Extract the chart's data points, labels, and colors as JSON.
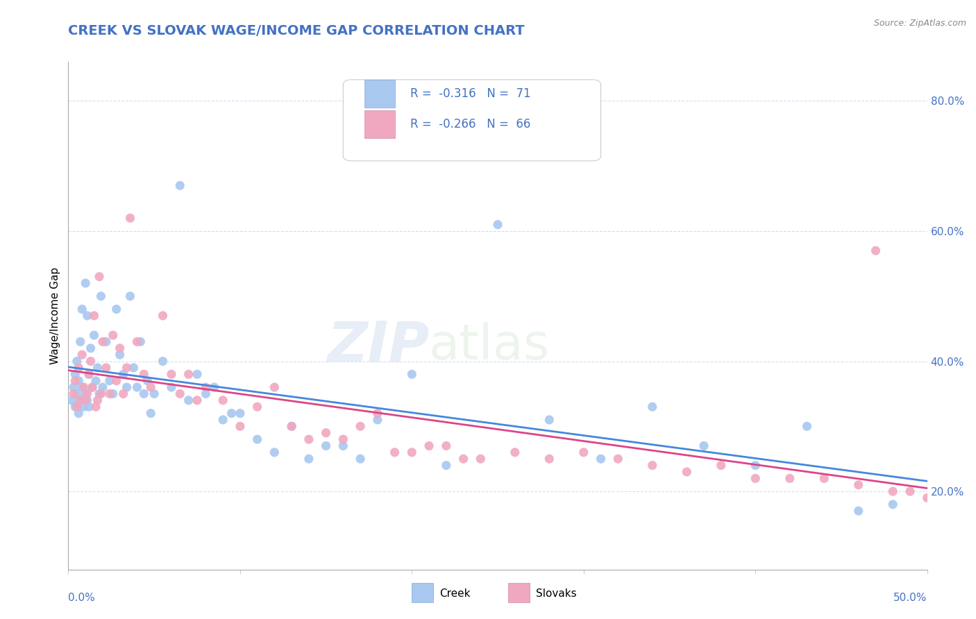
{
  "title": "CREEK VS SLOVAK WAGE/INCOME GAP CORRELATION CHART",
  "source": "Source: ZipAtlas.com",
  "ylabel": "Wage/Income Gap",
  "ytick_vals": [
    0.2,
    0.4,
    0.6,
    0.8
  ],
  "ytick_labels": [
    "20.0%",
    "40.0%",
    "60.0%",
    "80.0%"
  ],
  "xlim": [
    0.0,
    0.5
  ],
  "ylim": [
    0.08,
    0.86
  ],
  "creek_R": -0.316,
  "creek_N": 71,
  "slovak_R": -0.266,
  "slovak_N": 66,
  "creek_color": "#a8c8f0",
  "slovak_color": "#f0a8c0",
  "creek_line_color": "#4488dd",
  "slovak_line_color": "#dd4488",
  "axis_color": "#4472c4",
  "title_color": "#4472c4",
  "watermark_zip": "ZIP",
  "watermark_atlas": "atlas",
  "creek_x": [
    0.002,
    0.003,
    0.004,
    0.004,
    0.005,
    0.005,
    0.006,
    0.006,
    0.007,
    0.007,
    0.008,
    0.008,
    0.009,
    0.01,
    0.01,
    0.011,
    0.011,
    0.012,
    0.012,
    0.013,
    0.014,
    0.015,
    0.016,
    0.017,
    0.018,
    0.019,
    0.02,
    0.022,
    0.024,
    0.026,
    0.028,
    0.03,
    0.032,
    0.034,
    0.036,
    0.038,
    0.04,
    0.042,
    0.044,
    0.046,
    0.048,
    0.05,
    0.055,
    0.06,
    0.065,
    0.07,
    0.075,
    0.08,
    0.085,
    0.09,
    0.095,
    0.1,
    0.11,
    0.12,
    0.13,
    0.14,
    0.15,
    0.16,
    0.17,
    0.18,
    0.2,
    0.22,
    0.25,
    0.28,
    0.31,
    0.34,
    0.37,
    0.4,
    0.43,
    0.46,
    0.48
  ],
  "creek_y": [
    0.34,
    0.36,
    0.33,
    0.38,
    0.35,
    0.4,
    0.32,
    0.37,
    0.34,
    0.43,
    0.36,
    0.48,
    0.33,
    0.35,
    0.52,
    0.34,
    0.47,
    0.38,
    0.33,
    0.42,
    0.36,
    0.44,
    0.37,
    0.39,
    0.35,
    0.5,
    0.36,
    0.43,
    0.37,
    0.35,
    0.48,
    0.41,
    0.38,
    0.36,
    0.5,
    0.39,
    0.36,
    0.43,
    0.35,
    0.37,
    0.32,
    0.35,
    0.4,
    0.36,
    0.67,
    0.34,
    0.38,
    0.35,
    0.36,
    0.31,
    0.32,
    0.32,
    0.28,
    0.26,
    0.3,
    0.25,
    0.27,
    0.27,
    0.25,
    0.31,
    0.38,
    0.24,
    0.61,
    0.31,
    0.25,
    0.33,
    0.27,
    0.24,
    0.3,
    0.17,
    0.18
  ],
  "slovak_x": [
    0.003,
    0.004,
    0.005,
    0.006,
    0.007,
    0.008,
    0.009,
    0.01,
    0.011,
    0.012,
    0.013,
    0.014,
    0.015,
    0.016,
    0.017,
    0.018,
    0.019,
    0.02,
    0.022,
    0.024,
    0.026,
    0.028,
    0.03,
    0.032,
    0.034,
    0.036,
    0.04,
    0.044,
    0.048,
    0.055,
    0.06,
    0.065,
    0.07,
    0.075,
    0.08,
    0.09,
    0.1,
    0.11,
    0.12,
    0.13,
    0.14,
    0.15,
    0.16,
    0.17,
    0.18,
    0.19,
    0.2,
    0.21,
    0.22,
    0.23,
    0.24,
    0.26,
    0.28,
    0.3,
    0.32,
    0.34,
    0.36,
    0.38,
    0.4,
    0.42,
    0.44,
    0.46,
    0.47,
    0.48,
    0.49,
    0.5
  ],
  "slovak_y": [
    0.35,
    0.37,
    0.33,
    0.39,
    0.34,
    0.41,
    0.36,
    0.34,
    0.35,
    0.38,
    0.4,
    0.36,
    0.47,
    0.33,
    0.34,
    0.53,
    0.35,
    0.43,
    0.39,
    0.35,
    0.44,
    0.37,
    0.42,
    0.35,
    0.39,
    0.62,
    0.43,
    0.38,
    0.36,
    0.47,
    0.38,
    0.35,
    0.38,
    0.34,
    0.36,
    0.34,
    0.3,
    0.33,
    0.36,
    0.3,
    0.28,
    0.29,
    0.28,
    0.3,
    0.32,
    0.26,
    0.26,
    0.27,
    0.27,
    0.25,
    0.25,
    0.26,
    0.25,
    0.26,
    0.25,
    0.24,
    0.23,
    0.24,
    0.22,
    0.22,
    0.22,
    0.21,
    0.57,
    0.2,
    0.2,
    0.19
  ]
}
